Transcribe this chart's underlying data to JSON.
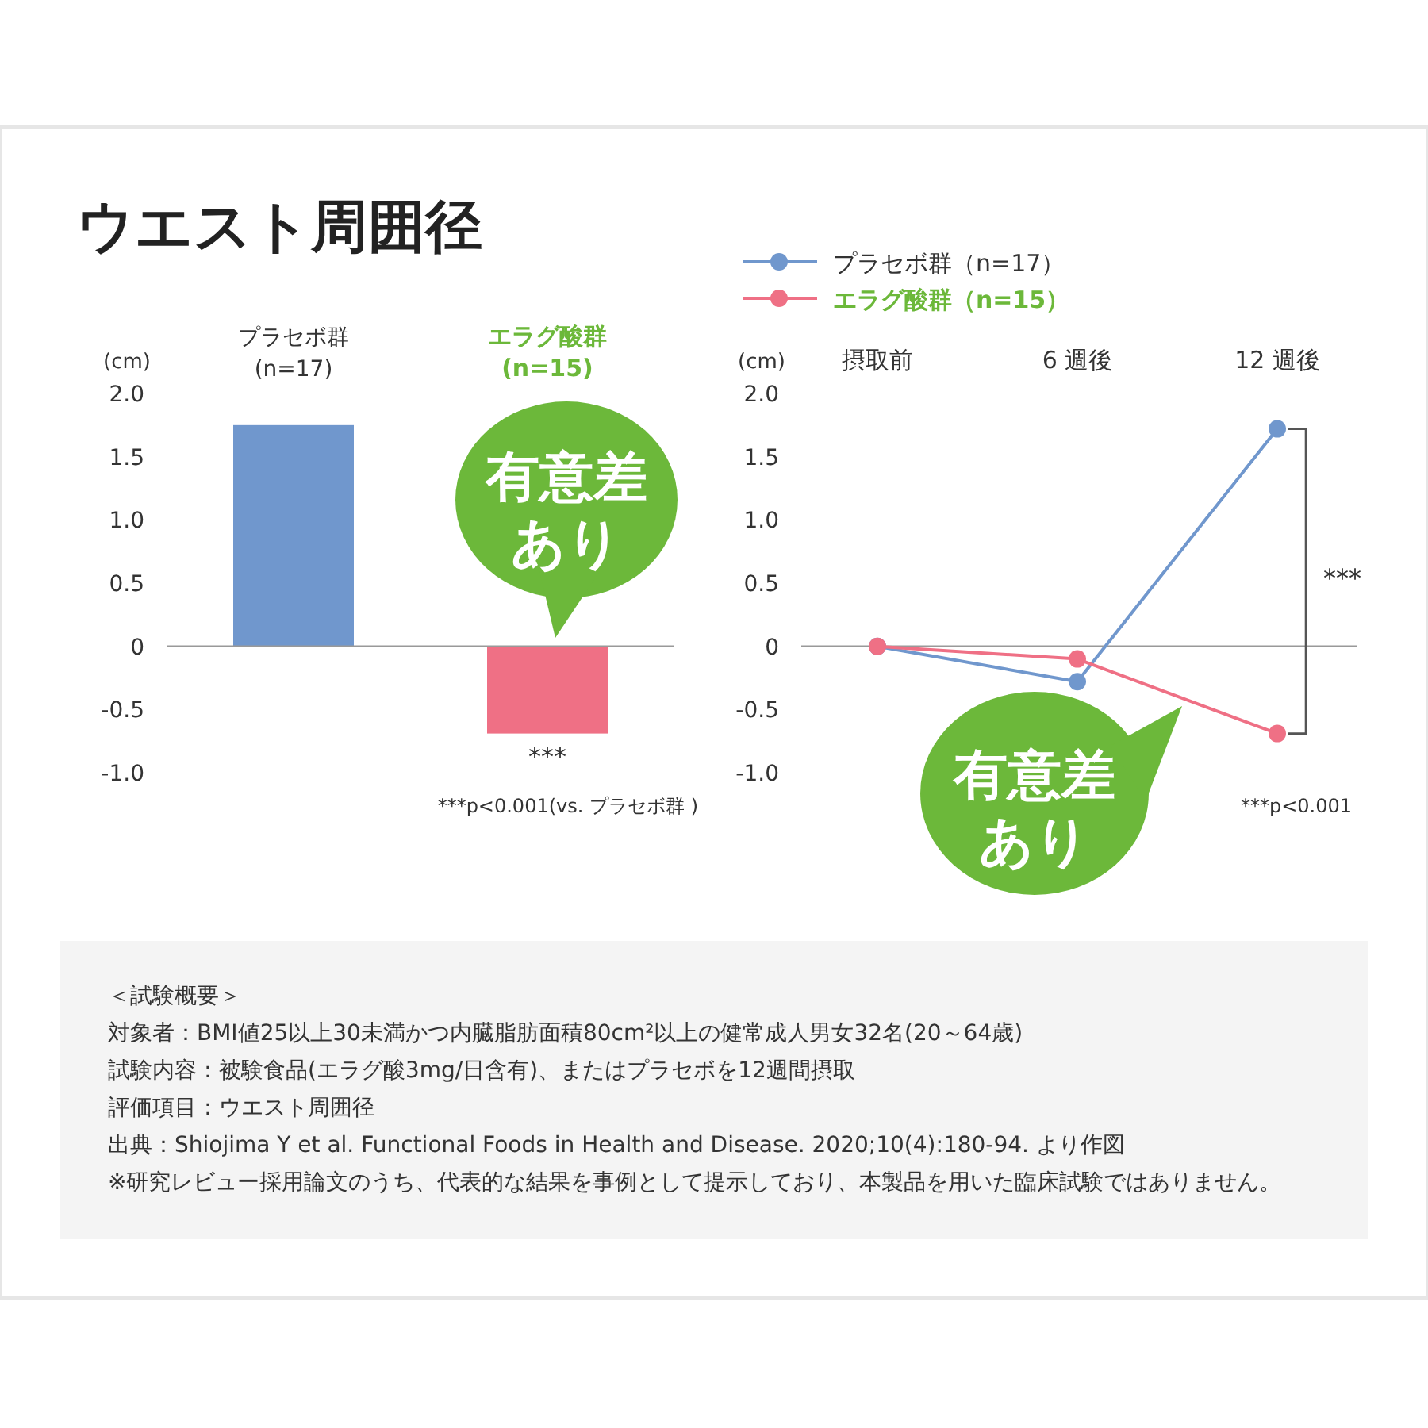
{
  "chart_data": [
    {
      "type": "bar",
      "title": "ウエスト周囲径",
      "ylabel": "(cm)",
      "categories": [
        "プラセボ群\n(n=17)",
        "エラグ酸群\n(n=15)"
      ],
      "values": [
        1.75,
        -0.69
      ],
      "colors": [
        "#7097cd",
        "#ef7085"
      ],
      "ylim": [
        -1.0,
        2.0
      ],
      "yticks": [
        {
          "value": 2,
          "label": "2.0"
        },
        {
          "value": 1.5,
          "label": "1.5"
        },
        {
          "value": 1,
          "label": "1.0"
        },
        {
          "value": 0.5,
          "label": "0.5"
        },
        0,
        {
          "value": -0.5,
          "label": "-0.5"
        },
        {
          "value": -1,
          "label": "-1.0"
        }
      ],
      "annotations": [
        {
          "text": "***",
          "x": "エラグ酸群\n(n=15)",
          "y": -0.69
        },
        "***p<0.001(vs. プラセボ群 )",
        "有意差",
        "あり"
      ]
    },
    {
      "type": "line",
      "ylabel": "(cm)",
      "categories": [
        "摂取前",
        "6 週後",
        "12 週後"
      ],
      "marker": "circle",
      "legend": "top left",
      "series": [
        {
          "name": "プラセボ群（n=17）",
          "color": "#7097cd",
          "values": [
            0,
            -0.28,
            1.72
          ]
        },
        {
          "name": "エラグ酸群（n=15）",
          "color": "#ef7085",
          "values": [
            0,
            -0.1,
            -0.69
          ]
        }
      ],
      "ylim": [
        -1.0,
        2.0
      ],
      "yticks": [
        {
          "value": 2,
          "label": "2.0"
        },
        {
          "value": 1.5,
          "label": "1.5"
        },
        {
          "value": 1,
          "label": "1.0"
        },
        {
          "value": 0.5,
          "label": "0.5"
        },
        0,
        {
          "value": -0.5,
          "label": "-0.5"
        },
        {
          "value": -1,
          "label": "-1.0"
        }
      ],
      "annotations": [
        "***",
        "***p<0.001",
        "有意差",
        "あり"
      ]
    },
    {
      "type": "other",
      "annotations": [
        "＜試験概要＞",
        "対象者：BMI値25以上30未満かつ内臓脂肪面積80cm²以上の健常成人男女32名(20～64歳)",
        "試験内容：被験食品(エラグ酸3mg/日含有)、またはプラセボを12週間摂取",
        "評価項目：ウエスト周囲径",
        "出典：Shiojima Y et al. Functional Foods in Health and Disease. 2020;10(4):180-94. より作図",
        "※研究レビュー採用論文のうち、代表的な結果を事例として提示しており、本製品を用いた臨床試験ではありません。"
      ]
    }
  ]
}
